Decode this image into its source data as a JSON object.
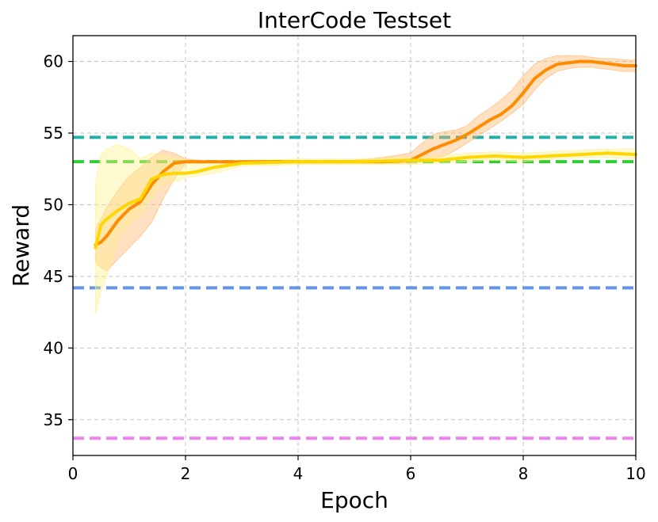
{
  "chart_data": {
    "type": "line",
    "title": "InterCode Testset",
    "xlabel": "Epoch",
    "ylabel": "Reward",
    "xlim": [
      0,
      10
    ],
    "ylim": [
      32.5,
      61.8
    ],
    "grid": true,
    "xticks": [
      0,
      2,
      4,
      6,
      8,
      10
    ],
    "yticks": [
      35,
      40,
      45,
      50,
      55,
      60
    ],
    "baselines": [
      {
        "value": 54.7,
        "color": "#20b2aa"
      },
      {
        "value": 53.0,
        "color": "#32cd32"
      },
      {
        "value": 44.2,
        "color": "#6495ed"
      },
      {
        "value": 33.7,
        "color": "#ee82ee"
      }
    ],
    "series": [
      {
        "color": "#ff8c00",
        "band_color": "#ffb366",
        "x": [
          0.4,
          0.5,
          0.6,
          0.8,
          1.0,
          1.2,
          1.4,
          1.6,
          1.8,
          2.0,
          2.5,
          3.0,
          4.0,
          5.0,
          5.5,
          6.0,
          6.2,
          6.4,
          6.6,
          6.8,
          7.0,
          7.2,
          7.4,
          7.6,
          7.8,
          8.0,
          8.2,
          8.4,
          8.6,
          8.8,
          9.0,
          9.2,
          9.4,
          9.6,
          9.8,
          10.0
        ],
        "y": [
          47.2,
          47.4,
          47.8,
          48.9,
          49.7,
          50.2,
          51.4,
          52.3,
          52.9,
          53.0,
          53.0,
          53.0,
          53.0,
          53.0,
          53.0,
          53.1,
          53.5,
          53.9,
          54.2,
          54.5,
          54.9,
          55.4,
          55.9,
          56.3,
          56.9,
          57.8,
          58.8,
          59.4,
          59.8,
          59.9,
          60.0,
          60.0,
          59.9,
          59.8,
          59.7,
          59.7
        ],
        "lower": [
          46.0,
          45.6,
          45.4,
          46.2,
          47.0,
          47.8,
          48.8,
          50.4,
          51.8,
          52.9,
          53.0,
          53.0,
          53.0,
          53.0,
          52.9,
          52.9,
          53.0,
          53.2,
          53.4,
          53.8,
          54.3,
          54.8,
          55.3,
          55.8,
          56.4,
          57.0,
          58.0,
          58.8,
          59.3,
          59.5,
          59.6,
          59.6,
          59.5,
          59.4,
          59.3,
          59.3
        ],
        "upper": [
          48.3,
          49.0,
          49.8,
          51.0,
          52.0,
          52.6,
          53.3,
          53.8,
          53.6,
          53.2,
          53.0,
          53.0,
          53.0,
          53.1,
          53.3,
          53.6,
          54.3,
          54.9,
          55.1,
          55.2,
          55.5,
          56.2,
          56.7,
          57.3,
          58.0,
          59.0,
          59.8,
          60.2,
          60.4,
          60.4,
          60.4,
          60.3,
          60.2,
          60.2,
          60.1,
          60.1
        ]
      },
      {
        "color": "#ffd700",
        "band_color": "#fff08a",
        "x": [
          0.4,
          0.5,
          0.6,
          0.8,
          1.0,
          1.2,
          1.4,
          1.6,
          1.8,
          2.0,
          2.2,
          2.5,
          3.0,
          4.0,
          5.0,
          6.0,
          6.5,
          7.0,
          7.5,
          8.0,
          8.5,
          9.0,
          9.5,
          10.0
        ],
        "y": [
          47.0,
          48.6,
          49.0,
          49.6,
          50.1,
          50.4,
          51.8,
          52.1,
          52.2,
          52.2,
          52.3,
          52.6,
          52.9,
          53.0,
          53.0,
          53.1,
          53.1,
          53.3,
          53.4,
          53.3,
          53.4,
          53.5,
          53.6,
          53.5
        ],
        "lower": [
          42.4,
          44.0,
          45.0,
          47.5,
          48.7,
          49.2,
          50.5,
          51.4,
          51.6,
          51.9,
          52.0,
          52.2,
          52.7,
          52.8,
          52.8,
          52.8,
          52.9,
          53.0,
          53.1,
          53.0,
          53.2,
          53.3,
          53.3,
          53.2
        ],
        "upper": [
          51.5,
          53.5,
          53.9,
          54.2,
          53.9,
          53.2,
          53.6,
          53.4,
          53.3,
          53.2,
          52.9,
          52.9,
          53.1,
          53.2,
          53.2,
          53.3,
          53.4,
          53.6,
          53.7,
          53.6,
          53.7,
          53.8,
          53.9,
          53.9
        ]
      }
    ]
  }
}
